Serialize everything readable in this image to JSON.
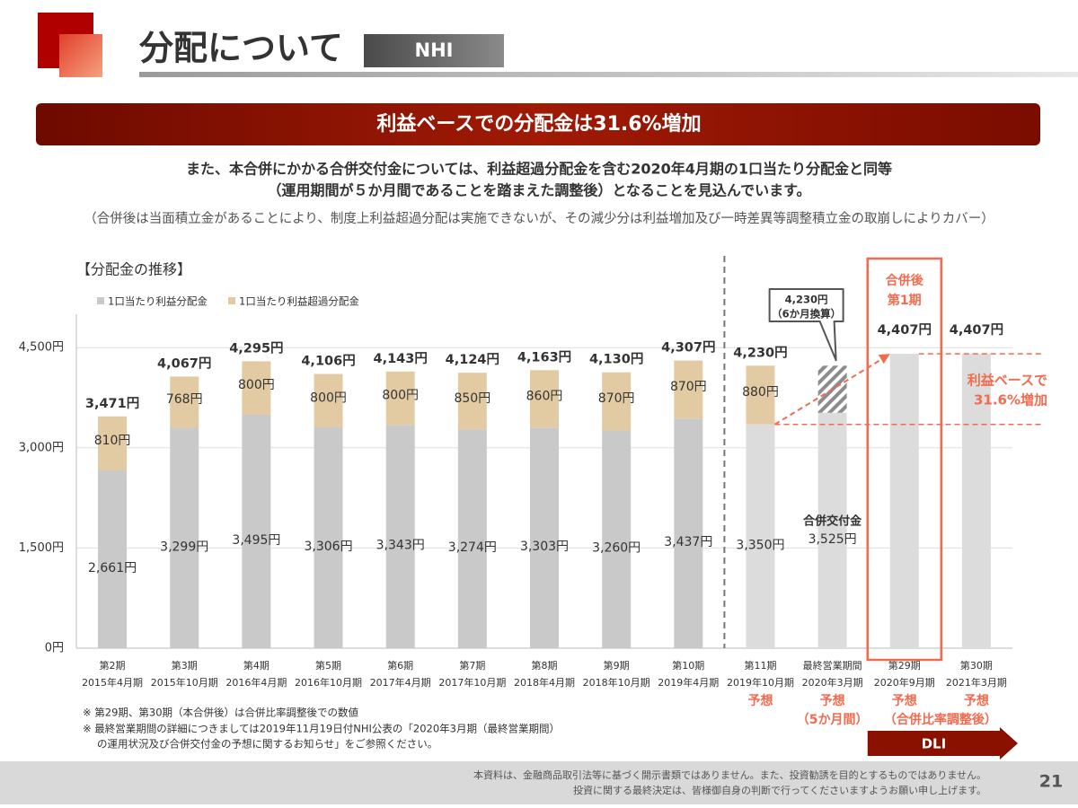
{
  "header": {
    "title": "分配について",
    "tag": "NHI"
  },
  "banner": "利益ベースでの分配金は31.6%増加",
  "lead": [
    "また、本合併にかかる合併交付金については、利益超過分配金を含む2020年4月期の1口当たり分配金と同等",
    "（運用期間が５か月間であることを踏まえた調整後）となることを見込んでいます。"
  ],
  "note": "（合併後は当面積立金があることにより、制度上利益超過分配は実施できないが、その減少分は利益増加及び一時差異等調整積立金の取崩しによりカバー）",
  "chart_data": {
    "type": "bar",
    "stacked": true,
    "title": "【分配金の推移】",
    "categories": [
      "第2期",
      "第3期",
      "第4期",
      "第5期",
      "第6期",
      "第7期",
      "第8期",
      "第9期",
      "第10期",
      "第11期",
      "最終営業期間",
      "第29期",
      "第30期"
    ],
    "category_dates": [
      "2015年4月期",
      "2015年10月期",
      "2016年4月期",
      "2016年10月期",
      "2017年4月期",
      "2017年10月期",
      "2018年4月期",
      "2018年10月期",
      "2019年4月期",
      "2019年10月期",
      "2020年3月期",
      "2020年9月期",
      "2021年3月期"
    ],
    "series": [
      {
        "name": "1口当たり利益分配金",
        "color": "#c9c9c9",
        "values": [
          2661,
          3299,
          3495,
          3306,
          3343,
          3274,
          3303,
          3260,
          3437,
          3350,
          3525,
          4407,
          4407
        ],
        "value_labels": [
          "2,661円",
          "3,299円",
          "3,495円",
          "3,306円",
          "3,343円",
          "3,274円",
          "3,303円",
          "3,260円",
          "3,437円",
          "3,350円",
          "3,525円",
          null,
          null
        ]
      },
      {
        "name": "1口当たり利益超過分配金",
        "color": "#e2cba3",
        "values": [
          810,
          768,
          800,
          800,
          800,
          850,
          860,
          870,
          870,
          880,
          null,
          null,
          null
        ],
        "value_labels": [
          "810円",
          "768円",
          "800円",
          "800円",
          "800円",
          "850円",
          "860円",
          "870円",
          "870円",
          "880円",
          null,
          null,
          null
        ]
      },
      {
        "color": "#8c8c8c",
        "pattern": "hatch",
        "values": [
          null,
          null,
          null,
          null,
          null,
          null,
          null,
          null,
          null,
          null,
          705,
          null,
          null
        ]
      }
    ],
    "totals": {
      "values": [
        3471,
        4067,
        4295,
        4106,
        4143,
        4124,
        4163,
        4130,
        4307,
        4230,
        null,
        4407,
        4407
      ],
      "value_labels": [
        "3,471円",
        "4,067円",
        "4,295円",
        "4,106円",
        "4,143円",
        "4,124円",
        "4,163円",
        "4,130円",
        "4,307円",
        "4,230円",
        null,
        "4,407円",
        "4,407円"
      ]
    },
    "segment_notes": [
      null,
      null,
      null,
      null,
      null,
      null,
      null,
      null,
      null,
      null,
      "合併交付金",
      null,
      null
    ],
    "callouts": [
      null,
      null,
      null,
      null,
      null,
      null,
      null,
      null,
      null,
      null,
      {
        "value": 4230,
        "label": "4,230円",
        "note": "（6か月換算）"
      },
      null,
      null
    ],
    "forecast_color": "#dcdcdc",
    "forecast_labels": [
      null,
      null,
      null,
      null,
      null,
      null,
      null,
      null,
      null,
      "予想",
      "予想",
      "予想",
      "予想"
    ],
    "forecast_notes": [
      null,
      null,
      null,
      null,
      null,
      null,
      null,
      null,
      null,
      null,
      "（5か月間）",
      "（合併比率調整後）",
      null
    ],
    "highlight": [
      null,
      null,
      null,
      null,
      null,
      null,
      null,
      null,
      null,
      null,
      null,
      [
        "合併後",
        "第1期"
      ],
      null
    ],
    "highlight_color": "#f26b4f",
    "growth_label": [
      "利益ベースで",
      "31.6%増加"
    ],
    "group_label": "DLI",
    "ylim": [
      0,
      5000
    ],
    "yticks": [
      {
        "value": 0,
        "label": "0円"
      },
      {
        "value": 1500,
        "label": "1,500円"
      },
      {
        "value": 3000,
        "label": "3,000円"
      },
      {
        "value": 4500,
        "label": "4,500円"
      }
    ],
    "grid": true
  },
  "footnotes": [
    "※ 第29期、第30期（本合併後）は合併比率調整後での数値",
    "※ 最終営業期間の詳細につきましては2019年11月19日付NHI公表の「2020年3月期（最終営業期間）",
    "の運用状況及び合併交付金の予想に関するお知らせ」をご参照ください。"
  ],
  "footer": {
    "disclaimer": [
      "本資料は、金融商品取引法等に基づく開示書類ではありません。また、投資勧誘を目的とするものではありません。",
      "投資に関する最終決定は、皆様御自身の判断で行ってくださいますようお願い申し上げます。"
    ],
    "page": 21
  }
}
